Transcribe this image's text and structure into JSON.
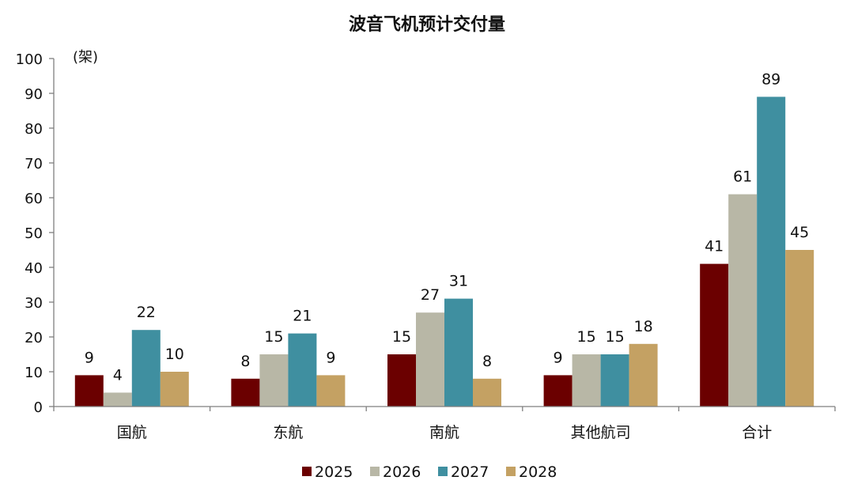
{
  "chart_data": {
    "type": "bar",
    "title": "波音飞机预计交付量",
    "ylabel": "(架)",
    "xlabel": "",
    "categories": [
      "国航",
      "东航",
      "南航",
      "其他航司",
      "合计"
    ],
    "series": [
      {
        "name": "2025",
        "color": "#6b0000",
        "values": [
          9,
          8,
          15,
          9,
          41
        ]
      },
      {
        "name": "2026",
        "color": "#b8b7a6",
        "values": [
          4,
          15,
          27,
          15,
          61
        ]
      },
      {
        "name": "2027",
        "color": "#3f8fa0",
        "values": [
          22,
          21,
          31,
          15,
          89
        ]
      },
      {
        "name": "2028",
        "color": "#c4a163",
        "values": [
          10,
          9,
          8,
          18,
          45
        ]
      }
    ],
    "ylim": [
      0,
      100
    ],
    "yticks": [
      0,
      10,
      20,
      30,
      40,
      50,
      60,
      70,
      80,
      90,
      100
    ],
    "grid": false,
    "legend": "bottom-center"
  }
}
